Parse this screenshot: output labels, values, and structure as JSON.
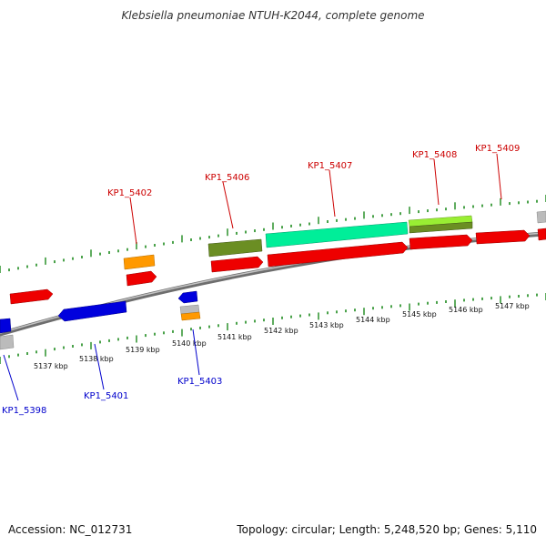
{
  "title": "Klebsiella pneumoniae NTUH-K2044, complete genome",
  "footer": {
    "accession": "Accession: NC_012731",
    "summary": "Topology: circular; Length: 5,248,520 bp; Genes: 5,110"
  },
  "colors": {
    "backbone": "#8c8c8c",
    "tick": "#1d8a1d",
    "cds_red": "#ee0000",
    "cds_blue": "#0000dd",
    "cds_orange": "#ff9900",
    "cds_olive": "#6b8e23",
    "cds_spring_green": "#00ee99",
    "cds_yellow_green": "#99ee33",
    "cds_gray": "#bbbbbb",
    "label_forward": "#cc0000",
    "label_reverse": "#0000cc"
  },
  "scale_labels": [
    "5137 kbp",
    "5138 kbp",
    "5139 kbp",
    "5140 kbp",
    "5141 kbp",
    "5142 kbp",
    "5143 kbp",
    "5144 kbp",
    "5145 kbp",
    "5146 kbp",
    "5147 kbp"
  ],
  "gene_labels": {
    "forward": [
      "KP1_5402",
      "KP1_5406",
      "KP1_5407",
      "KP1_5408",
      "KP1_5409"
    ],
    "reverse": [
      "KP1_5398",
      "KP1_5401",
      "KP1_5403"
    ]
  },
  "features": [
    {
      "strand": "forward",
      "row": 1,
      "color": "red"
    },
    {
      "strand": "forward",
      "row": 1,
      "color": "red"
    },
    {
      "strand": "forward",
      "row": 1,
      "color": "red"
    },
    {
      "strand": "forward",
      "row": 1,
      "color": "red"
    },
    {
      "strand": "forward",
      "row": 1,
      "color": "red"
    },
    {
      "strand": "forward",
      "row": 1,
      "color": "red"
    },
    {
      "strand": "forward",
      "row": 1,
      "color": "red"
    },
    {
      "strand": "forward",
      "row": 2,
      "color": "orange"
    },
    {
      "strand": "forward",
      "row": 2,
      "color": "olive"
    },
    {
      "strand": "forward",
      "row": 2,
      "color": "spring-green"
    },
    {
      "strand": "forward",
      "row": 2,
      "color": "yellow-green"
    },
    {
      "strand": "forward",
      "row": 2,
      "color": "gray"
    },
    {
      "strand": "reverse",
      "row": 1,
      "color": "blue"
    },
    {
      "strand": "reverse",
      "row": 1,
      "color": "blue"
    },
    {
      "strand": "reverse",
      "row": 1,
      "color": "blue"
    },
    {
      "strand": "reverse",
      "row": 2,
      "color": "gray"
    },
    {
      "strand": "reverse",
      "row": 2,
      "color": "gray"
    },
    {
      "strand": "reverse",
      "row": 3,
      "color": "orange"
    }
  ]
}
